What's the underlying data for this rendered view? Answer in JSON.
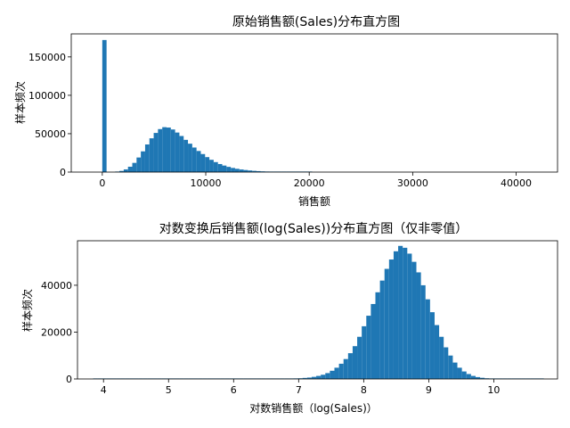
{
  "chart_data": [
    {
      "type": "bar",
      "title": "原始销售额(Sales)分布直方图",
      "xlabel": "销售额",
      "ylabel": "样本频次",
      "xlim": [
        -3000,
        44000
      ],
      "ylim": [
        0,
        180000
      ],
      "xticks": [
        0,
        10000,
        20000,
        30000,
        40000
      ],
      "xtick_labels": [
        "0",
        "10000",
        "20000",
        "30000",
        "40000"
      ],
      "yticks": [
        0,
        50000,
        100000,
        150000
      ],
      "ytick_labels": [
        "0",
        "50000",
        "100000",
        "150000"
      ],
      "bin_width": 414,
      "bin_starts": [
        0,
        414,
        828,
        1242,
        1656,
        2070,
        2484,
        2898,
        3312,
        3726,
        4140,
        4554,
        4968,
        5382,
        5796,
        6210,
        6624,
        7038,
        7452,
        7866,
        8280,
        8694,
        9108,
        9522,
        9936,
        10350,
        10764,
        11178,
        11592,
        12006,
        12420,
        12834,
        13248,
        13662,
        14076,
        14490,
        14904,
        15318,
        15732,
        16146,
        16560,
        16974,
        17388,
        17802,
        18216,
        18630,
        19044,
        19458,
        19872
      ],
      "counts": [
        172000,
        0,
        0,
        500,
        1500,
        3500,
        7000,
        12000,
        19000,
        27000,
        36000,
        44000,
        51000,
        56000,
        58500,
        58000,
        55500,
        51500,
        47000,
        42000,
        37000,
        32000,
        27500,
        23500,
        19500,
        16000,
        13000,
        10500,
        8500,
        6800,
        5400,
        4300,
        3400,
        2700,
        2100,
        1600,
        1250,
        950,
        750,
        580,
        440,
        340,
        260,
        200,
        150,
        110,
        80,
        60,
        50
      ],
      "grid": false,
      "color": "#1f77b4"
    },
    {
      "type": "bar",
      "title": "对数变换后销售额(log(Sales))分布直方图（仅非零值）",
      "xlabel": "对数销售额（log(Sales)）",
      "ylabel": "样本频次",
      "xlim": [
        3.6,
        10.98
      ],
      "ylim": [
        0,
        59000
      ],
      "xticks": [
        4,
        5,
        6,
        7,
        8,
        9,
        10
      ],
      "xtick_labels": [
        "4",
        "5",
        "6",
        "7",
        "8",
        "9",
        "10"
      ],
      "yticks": [
        0,
        20000,
        40000
      ],
      "ytick_labels": [
        "0",
        "20000",
        "40000"
      ],
      "bin_width": 0.07,
      "bin_starts": [
        3.84,
        3.91,
        3.98,
        4.05,
        4.12,
        4.19,
        4.26,
        4.33,
        4.4,
        4.47,
        4.54,
        4.61,
        4.68,
        4.75,
        4.82,
        4.89,
        4.96,
        5.03,
        5.1,
        5.17,
        5.24,
        5.31,
        5.38,
        5.45,
        5.52,
        5.59,
        5.66,
        5.73,
        5.8,
        5.87,
        5.94,
        6.01,
        6.08,
        6.15,
        6.22,
        6.29,
        6.36,
        6.43,
        6.5,
        6.57,
        6.64,
        6.71,
        6.78,
        6.85,
        6.92,
        6.99,
        7.06,
        7.13,
        7.2,
        7.27,
        7.34,
        7.41,
        7.48,
        7.55,
        7.62,
        7.69,
        7.76,
        7.83,
        7.9,
        7.97,
        8.04,
        8.11,
        8.18,
        8.25,
        8.32,
        8.39,
        8.46,
        8.53,
        8.6,
        8.67,
        8.74,
        8.81,
        8.88,
        8.95,
        9.02,
        9.09,
        9.16,
        9.23,
        9.3,
        9.37,
        9.44,
        9.51,
        9.58,
        9.65,
        9.72,
        9.79,
        9.86,
        9.93,
        10.0,
        10.07,
        10.14,
        10.21,
        10.28,
        10.35,
        10.42,
        10.49,
        10.56,
        10.63,
        10.7
      ],
      "counts": [
        5,
        3,
        3,
        3,
        3,
        3,
        3,
        3,
        3,
        3,
        3,
        3,
        4,
        4,
        5,
        5,
        5,
        5,
        5,
        5,
        6,
        6,
        7,
        7,
        8,
        8,
        9,
        10,
        11,
        12,
        13,
        14,
        16,
        18,
        20,
        25,
        30,
        40,
        50,
        60,
        80,
        100,
        130,
        180,
        250,
        300,
        450,
        600,
        900,
        1300,
        1800,
        2500,
        3500,
        4800,
        6500,
        8500,
        11000,
        14000,
        18000,
        22500,
        27000,
        32000,
        37000,
        42000,
        47000,
        51000,
        54500,
        56800,
        56000,
        53500,
        50000,
        45500,
        40000,
        34000,
        28500,
        23000,
        18000,
        13500,
        10000,
        7000,
        4800,
        3200,
        2100,
        1300,
        800,
        500,
        300,
        180,
        100,
        60,
        30,
        15,
        8,
        5,
        3,
        2,
        1,
        1,
        1
      ],
      "grid": false,
      "color": "#1f77b4"
    }
  ]
}
